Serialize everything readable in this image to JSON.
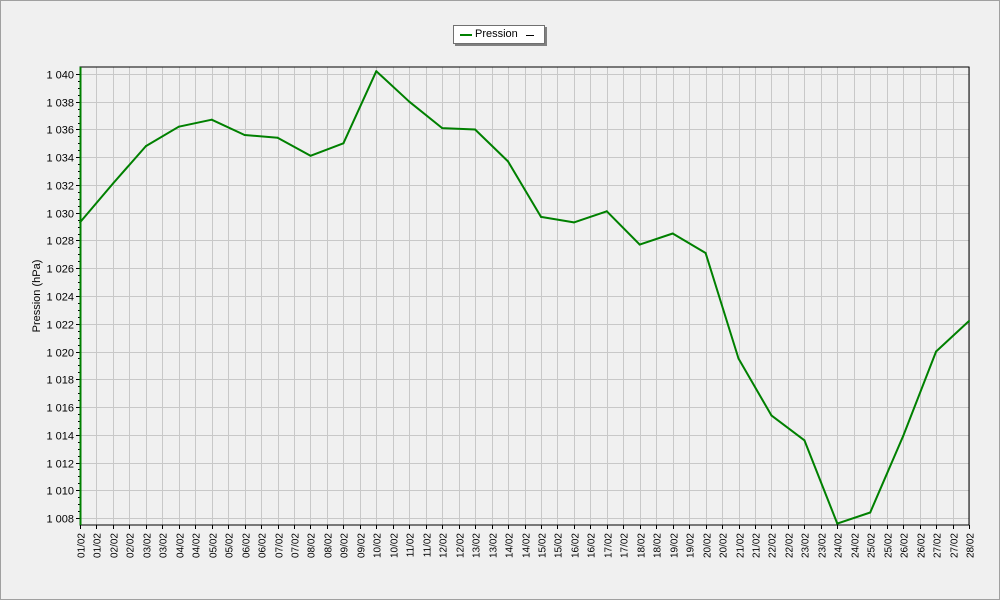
{
  "chart_data": {
    "type": "line",
    "ylabel": "Pression (hPa)",
    "legend": {
      "position": "top-center",
      "entries": [
        "Pression"
      ],
      "trailing_mark": "—"
    },
    "grid": true,
    "ylim": [
      1007.5,
      1040.5
    ],
    "yticks": [
      1008,
      1010,
      1012,
      1014,
      1016,
      1018,
      1020,
      1022,
      1024,
      1026,
      1028,
      1030,
      1032,
      1034,
      1036,
      1038,
      1040
    ],
    "ytick_labels": [
      "1 008",
      "1 010",
      "1 012",
      "1 014",
      "1 016",
      "1 018",
      "1 020",
      "1 022",
      "1 024",
      "1 026",
      "1 028",
      "1 030",
      "1 032",
      "1 034",
      "1 036",
      "1 038",
      "1 040"
    ],
    "xticks": [
      "01/02",
      "01/02",
      "02/02",
      "02/02",
      "03/02",
      "03/02",
      "04/02",
      "04/02",
      "05/02",
      "05/02",
      "06/02",
      "06/02",
      "07/02",
      "07/02",
      "08/02",
      "08/02",
      "09/02",
      "09/02",
      "10/02",
      "10/02",
      "11/02",
      "11/02",
      "12/02",
      "12/02",
      "13/02",
      "13/02",
      "14/02",
      "14/02",
      "15/02",
      "15/02",
      "16/02",
      "16/02",
      "17/02",
      "17/02",
      "18/02",
      "18/02",
      "19/02",
      "19/02",
      "20/02",
      "20/02",
      "21/02",
      "21/02",
      "22/02",
      "22/02",
      "23/02",
      "23/02",
      "24/02",
      "24/02",
      "25/02",
      "25/02",
      "26/02",
      "26/02",
      "27/02",
      "27/02",
      "28/02"
    ],
    "series": [
      {
        "name": "Pression",
        "color": "#008000",
        "x": [
          0,
          2,
          4,
          6,
          8,
          10,
          12,
          14,
          16,
          18,
          20,
          22,
          24,
          26,
          28,
          30,
          32,
          34,
          36,
          38,
          40,
          42,
          44,
          46,
          48,
          50,
          52,
          54
        ],
        "values": [
          1029.3,
          1032.1,
          1034.8,
          1036.2,
          1036.7,
          1035.6,
          1035.4,
          1034.1,
          1035.0,
          1040.2,
          1038.0,
          1036.1,
          1036.0,
          1033.7,
          1029.7,
          1029.3,
          1030.1,
          1027.7,
          1028.5,
          1027.1,
          1019.5,
          1015.4,
          1013.6,
          1007.6,
          1008.4,
          1013.9,
          1020.0,
          1022.2
        ]
      }
    ]
  }
}
